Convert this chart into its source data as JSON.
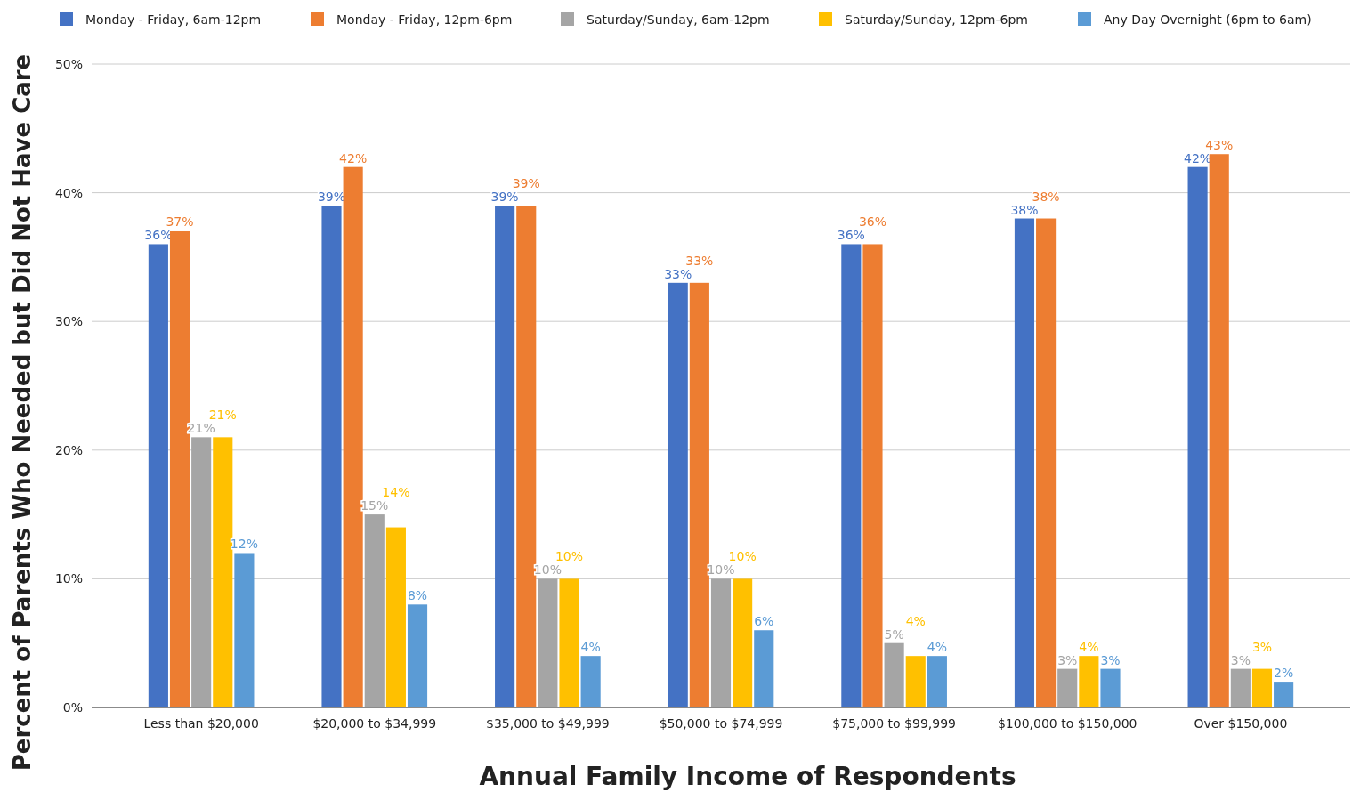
{
  "chart_data": {
    "type": "bar",
    "xlabel": "Annual Family Income of Respondents",
    "ylabel": "Percent of Parents Who Needed but Did Not Have Care",
    "categories": [
      "Less than $20,000",
      "$20,000 to $34,999",
      "$35,000 to $49,999",
      "$50,000 to $74,999",
      "$75,000 to $99,999",
      "$100,000 to $150,000",
      "Over $150,000"
    ],
    "series": [
      {
        "name": "Monday - Friday, 6am-12pm",
        "color": "#4472c4",
        "values": [
          36,
          39,
          39,
          33,
          36,
          38,
          42
        ],
        "value_labels": [
          "36%",
          "39%",
          "39%",
          "33%",
          "36%",
          "38%",
          "42%"
        ]
      },
      {
        "name": "Monday - Friday, 12pm-6pm",
        "color": "#ed7d31",
        "values": [
          37,
          42,
          39,
          33,
          36,
          38,
          43
        ],
        "value_labels": [
          "37%",
          "42%",
          "39%",
          "33%",
          "36%",
          "38%",
          "43%"
        ]
      },
      {
        "name": "Saturday/Sunday, 6am-12pm",
        "color": "#a5a5a5",
        "values": [
          21,
          15,
          10,
          10,
          5,
          3,
          3
        ],
        "value_labels": [
          "21%",
          "15%",
          "10%",
          "10%",
          "5%",
          "3%",
          "3%"
        ]
      },
      {
        "name": "Saturday/Sunday, 12pm-6pm",
        "color": "#ffc000",
        "values": [
          21,
          14,
          10,
          10,
          4,
          4,
          3
        ],
        "value_labels": [
          "21%",
          "14%",
          "10%",
          "10%",
          "4%",
          "4%",
          "3%"
        ]
      },
      {
        "name": "Any Day Overnight (6pm to 6am)",
        "color": "#5b9bd5",
        "values": [
          12,
          8,
          4,
          6,
          4,
          3,
          2
        ],
        "value_labels": [
          "12%",
          "8%",
          "4%",
          "6%",
          "4%",
          "3%",
          "2%"
        ]
      }
    ],
    "ylim": [
      0,
      50
    ],
    "yticks": [
      {
        "value": 0,
        "label": "0%"
      },
      {
        "value": 10,
        "label": "10%"
      },
      {
        "value": 20,
        "label": "20%"
      },
      {
        "value": 30,
        "label": "30%"
      },
      {
        "value": 40,
        "label": "40%"
      },
      {
        "value": 50,
        "label": "50%"
      }
    ],
    "grid": "y",
    "legend": "top"
  }
}
